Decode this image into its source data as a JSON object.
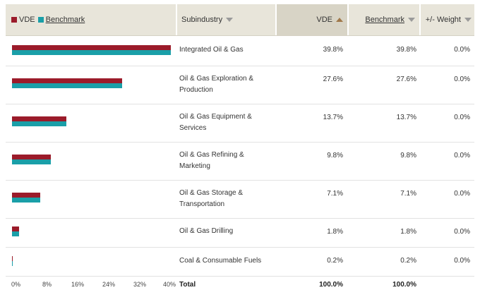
{
  "legend": {
    "vde_label": "VDE",
    "benchmark_label": "Benchmark",
    "vde_color": "#9b1b2a",
    "benchmark_color": "#1a9fa8"
  },
  "columns": {
    "subindustry": "Subindustry",
    "vde": "VDE",
    "benchmark": "Benchmark",
    "weight": "+/- Weight"
  },
  "rows": [
    {
      "name": "Integrated Oil & Gas",
      "vde": "39.8%",
      "benchmark": "39.8%",
      "weight": "0.0%"
    },
    {
      "name": "Oil & Gas Exploration & Production",
      "vde": "27.6%",
      "benchmark": "27.6%",
      "weight": "0.0%"
    },
    {
      "name": "Oil & Gas Equipment & Services",
      "vde": "13.7%",
      "benchmark": "13.7%",
      "weight": "0.0%"
    },
    {
      "name": "Oil & Gas Refining & Marketing",
      "vde": "9.8%",
      "benchmark": "9.8%",
      "weight": "0.0%"
    },
    {
      "name": "Oil & Gas Storage & Transportation",
      "vde": "7.1%",
      "benchmark": "7.1%",
      "weight": "0.0%"
    },
    {
      "name": "Oil & Gas Drilling",
      "vde": "1.8%",
      "benchmark": "1.8%",
      "weight": "0.0%"
    },
    {
      "name": "Coal & Consumable Fuels",
      "vde": "0.2%",
      "benchmark": "0.2%",
      "weight": "0.0%"
    }
  ],
  "axis_ticks": [
    "0%",
    "8%",
    "16%",
    "24%",
    "32%",
    "40%"
  ],
  "total": {
    "label": "Total",
    "vde": "100.0%",
    "benchmark": "100.0%"
  },
  "chart_data": {
    "type": "bar",
    "orientation": "horizontal",
    "categories": [
      "Integrated Oil & Gas",
      "Oil & Gas Exploration & Production",
      "Oil & Gas Equipment & Services",
      "Oil & Gas Refining & Marketing",
      "Oil & Gas Storage & Transportation",
      "Oil & Gas Drilling",
      "Coal & Consumable Fuels"
    ],
    "series": [
      {
        "name": "VDE",
        "values": [
          39.8,
          27.6,
          13.7,
          9.8,
          7.1,
          1.8,
          0.2
        ]
      },
      {
        "name": "Benchmark",
        "values": [
          39.8,
          27.6,
          13.7,
          9.8,
          7.1,
          1.8,
          0.2
        ]
      }
    ],
    "xlim": [
      0,
      40
    ],
    "legend": "top-left"
  }
}
